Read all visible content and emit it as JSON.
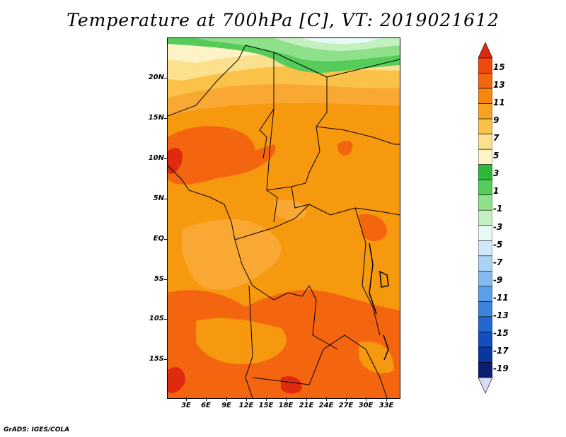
{
  "title": "Temperature at 700hPa [C], VT: 2019021612",
  "credit": "GrADS: IGES/COLA",
  "lat_labels": [
    "20N",
    "15N",
    "10N",
    "5N",
    "EQ",
    "5S",
    "10S",
    "15S"
  ],
  "lon_labels": [
    "3E",
    "6E",
    "9E",
    "12E",
    "15E",
    "18E",
    "21E",
    "24E",
    "27E",
    "30E",
    "33E"
  ],
  "colorbar": {
    "labels": [
      "15",
      "13",
      "11",
      "9",
      "7",
      "5",
      "3",
      "1",
      "-1",
      "-3",
      "-5",
      "-7",
      "-9",
      "-11",
      "-13",
      "-15",
      "-17",
      "-19"
    ],
    "colors": [
      "#e02a10",
      "#f0480e",
      "#f4650f",
      "#f7870f",
      "#f9a322",
      "#fbc24a",
      "#fbe08e",
      "#fcf3c6",
      "#2eb83a",
      "#55cc5a",
      "#8ee08a",
      "#c4f0c0",
      "#e8faf6",
      "#cfe8f8",
      "#aad2f4",
      "#84baee",
      "#5d9fe6",
      "#3d84dc",
      "#2468cf",
      "#124ebd",
      "#0a36a0",
      "#0a1e72",
      "#dcdcf4"
    ]
  },
  "colors": {
    "band_green": "#55cc5a",
    "band_lightgreen": "#b7ecb2",
    "band_yellow": "#fbe08e",
    "band_cream": "#fcf3c6",
    "band_9_11": "#f7990f",
    "band_7_9": "#f9a933",
    "band_11_13": "#f4650f",
    "band_13_15": "#e02a10"
  }
}
